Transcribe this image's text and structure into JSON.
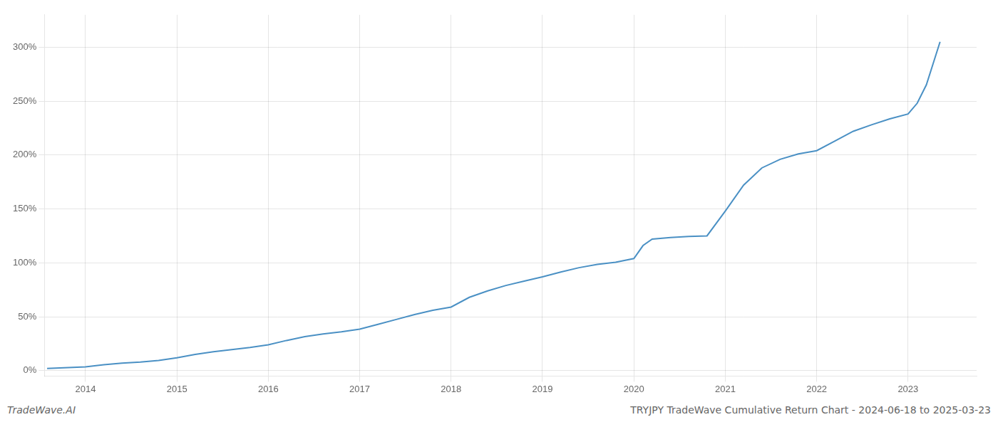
{
  "chart_data": {
    "type": "line",
    "title": "TRYJPY TradeWave Cumulative Return Chart - 2024-06-18 to 2025-03-23",
    "annotations": [
      "TradeWave.AI"
    ],
    "color": "#4a90c4",
    "grid": true,
    "xlim": [
      2013.55,
      2023.75
    ],
    "xticks": [
      2014,
      2015,
      2016,
      2017,
      2018,
      2019,
      2020,
      2021,
      2022,
      2023
    ],
    "ylim": [
      -5,
      330
    ],
    "yticks": [
      {
        "value": 0,
        "label": "0%"
      },
      {
        "value": 50,
        "label": "50%"
      },
      {
        "value": 100,
        "label": "100%"
      },
      {
        "value": 150,
        "label": "150%"
      },
      {
        "value": 200,
        "label": "200%"
      },
      {
        "value": 250,
        "label": "250%"
      },
      {
        "value": 300,
        "label": "300%"
      }
    ],
    "x": [
      2013.58,
      2014.0,
      2014.2,
      2014.4,
      2014.6,
      2014.8,
      2015.0,
      2015.2,
      2015.4,
      2015.6,
      2015.8,
      2016.0,
      2016.2,
      2016.4,
      2016.6,
      2016.8,
      2017.0,
      2017.2,
      2017.4,
      2017.6,
      2017.8,
      2018.0,
      2018.2,
      2018.4,
      2018.6,
      2018.8,
      2019.0,
      2019.2,
      2019.4,
      2019.6,
      2019.8,
      2020.0,
      2020.1,
      2020.2,
      2020.4,
      2020.6,
      2020.8,
      2021.0,
      2021.2,
      2021.4,
      2021.6,
      2021.8,
      2022.0,
      2022.2,
      2022.4,
      2022.6,
      2022.8,
      2023.0,
      2023.1,
      2023.2,
      2023.35
    ],
    "values": [
      2.0,
      3.5,
      5.5,
      7.0,
      8.0,
      9.5,
      12.0,
      15.0,
      17.5,
      19.5,
      21.5,
      24.0,
      28.0,
      31.5,
      34.0,
      36.0,
      38.5,
      43.0,
      47.5,
      52.0,
      56.0,
      59.0,
      68.0,
      74.0,
      79.0,
      83.0,
      87.0,
      91.5,
      95.5,
      98.5,
      100.5,
      104.0,
      116.0,
      122.0,
      123.5,
      124.5,
      125.0,
      148.0,
      172.0,
      188.0,
      196.0,
      201.0,
      204.0,
      213.0,
      222.0,
      228.0,
      233.5,
      238.0,
      248.0,
      265.0,
      305.0
    ]
  }
}
